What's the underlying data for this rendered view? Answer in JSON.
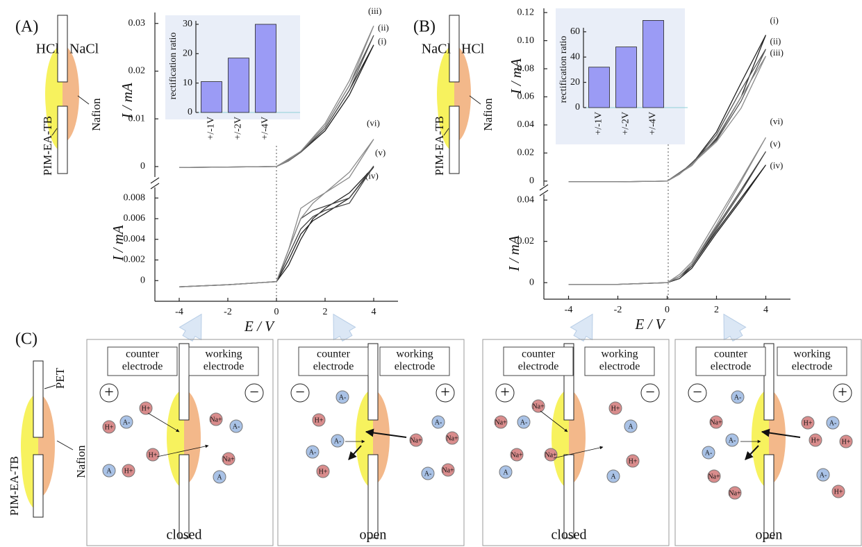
{
  "chart_data": [
    {
      "type": "line",
      "x": [
        -4,
        -2,
        0,
        0.5,
        1,
        2,
        3,
        4,
        3,
        2,
        1,
        0,
        -2,
        -4
      ],
      "series": [
        {
          "name": "(i)",
          "color": "#222222",
          "values": [
            -0.0002,
            -0.0001,
            0,
            0.0012,
            0.003,
            0.008,
            0.016,
            0.0255,
            0.015,
            0.0075,
            0.003,
            0,
            -0.0001,
            -0.0002
          ]
        },
        {
          "name": "(ii)",
          "color": "#555555",
          "values": [
            -0.0002,
            -0.0001,
            0,
            0.0012,
            0.0031,
            0.0085,
            0.017,
            0.0275,
            0.016,
            0.008,
            0.003,
            0,
            -0.0001,
            -0.0002
          ]
        },
        {
          "name": "(iii)",
          "color": "#8a8a8a",
          "values": [
            -0.0002,
            -0.0001,
            0,
            0.0013,
            0.0032,
            0.009,
            0.018,
            0.0295,
            0.017,
            0.0085,
            0.0032,
            0,
            -0.0001,
            -0.0002
          ]
        }
      ],
      "xlim": [
        -5,
        5
      ],
      "ylim": [
        -0.0035,
        0.032
      ],
      "yticks": [
        0,
        0.01,
        0.02,
        0.03
      ],
      "ylabel": "I / mA"
    },
    {
      "type": "line",
      "x": [
        -4,
        -2,
        0,
        0.5,
        1,
        1.5,
        2,
        3,
        4,
        3,
        2,
        1.5,
        1,
        0.5,
        0,
        -2,
        -4
      ],
      "series": [
        {
          "name": "(iv)",
          "color": "#222222",
          "values": [
            -0.0006,
            -0.0004,
            -0.0001,
            0.002,
            0.0045,
            0.0058,
            0.0065,
            0.008,
            0.011,
            0.0085,
            0.007,
            0.006,
            0.004,
            0.0015,
            -0.0001,
            -0.0004,
            -0.0006
          ]
        },
        {
          "name": "(v)",
          "color": "#444444",
          "values": [
            -0.0006,
            -0.0004,
            -0.0001,
            0.0025,
            0.005,
            0.0062,
            0.0068,
            0.0075,
            0.0111,
            0.008,
            0.0072,
            0.0068,
            0.006,
            0.003,
            -0.0001,
            -0.0004,
            -0.0006
          ]
        },
        {
          "name": "(vi)",
          "color": "#8a8a8a",
          "values": [
            -0.0006,
            -0.0004,
            -0.0001,
            0.003,
            0.006,
            0.0075,
            0.0085,
            0.0105,
            0.0137,
            0.01,
            0.0085,
            0.0078,
            0.007,
            0.003,
            -0.0001,
            -0.0004,
            -0.0006
          ]
        }
      ],
      "xlim": [
        -5,
        5
      ],
      "ylim": [
        -0.002,
        0.014
      ],
      "xticks": [
        -4,
        -2,
        0,
        2,
        4
      ],
      "yticks": [
        0,
        0.002,
        0.004,
        0.006,
        0.008
      ],
      "ylabel": "I / mA",
      "xlabel": "E / V"
    },
    {
      "type": "bar",
      "categories": [
        "+/-1V",
        "+/-2V",
        "+/-4V"
      ],
      "values": [
        10.5,
        18.5,
        30
      ],
      "color": "#9b9bf5",
      "ylim": [
        0,
        30
      ],
      "yticks": [
        0,
        10,
        20,
        30
      ],
      "ylabel": "rectification ratio"
    },
    {
      "type": "line",
      "x": [
        -4,
        -2,
        0,
        0.5,
        1,
        2,
        3,
        4,
        3,
        2,
        1,
        0,
        -2,
        -4
      ],
      "series": [
        {
          "name": "(i)",
          "color": "#222222",
          "values": [
            -0.0005,
            -0.0005,
            0,
            0.005,
            0.013,
            0.03,
            0.06,
            0.104,
            0.07,
            0.035,
            0.012,
            0,
            -0.0005,
            -0.0005
          ]
        },
        {
          "name": "(ii)",
          "color": "#555555",
          "values": [
            -0.0005,
            -0.0005,
            0,
            0.005,
            0.013,
            0.029,
            0.057,
            0.094,
            0.065,
            0.033,
            0.012,
            0,
            -0.0005,
            -0.0005
          ]
        },
        {
          "name": "(iii)",
          "color": "#8a8a8a",
          "values": [
            -0.0005,
            -0.0005,
            0,
            0.005,
            0.012,
            0.028,
            0.052,
            0.089,
            0.06,
            0.031,
            0.011,
            0,
            -0.0005,
            -0.0005
          ]
        }
      ],
      "xlim": [
        -5,
        5
      ],
      "ylim": [
        -0.005,
        0.125
      ],
      "yticks": [
        0,
        0.02,
        0.04,
        0.06,
        0.08,
        {
          "value": 0.1,
          "label": "0.10"
        },
        0.12
      ],
      "ylabel": "I / mA"
    },
    {
      "type": "line",
      "x": [
        -4,
        -2,
        0,
        0.5,
        1,
        2,
        3,
        4,
        3,
        2,
        1,
        0.5,
        0,
        -2,
        -4
      ],
      "series": [
        {
          "name": "(iv)",
          "color": "#222222",
          "values": [
            -0.0008,
            -0.0008,
            0,
            0.003,
            0.008,
            0.025,
            0.041,
            0.057,
            0.04,
            0.024,
            0.007,
            0.002,
            0,
            -0.0008,
            -0.0008
          ]
        },
        {
          "name": "(v)",
          "color": "#444444",
          "values": [
            -0.0008,
            -0.0008,
            0,
            0.003,
            0.009,
            0.027,
            0.045,
            0.0635,
            0.044,
            0.026,
            0.008,
            0.002,
            0,
            -0.0008,
            -0.0008
          ]
        },
        {
          "name": "(vi)",
          "color": "#8a8a8a",
          "values": [
            -0.0008,
            -0.0008,
            0,
            0.004,
            0.01,
            0.03,
            0.05,
            0.0703,
            0.049,
            0.028,
            0.009,
            0.003,
            0,
            -0.0008,
            -0.0008
          ]
        }
      ],
      "xlim": [
        -5,
        5
      ],
      "ylim": [
        -0.008,
        0.072
      ],
      "xticks": [
        -4,
        -2,
        0,
        2,
        4
      ],
      "yticks": [
        0,
        0.02,
        0.04
      ],
      "ylabel": "I / mA",
      "xlabel": "E / V"
    },
    {
      "type": "bar",
      "categories": [
        "+/-1V",
        "+/-2V",
        "+/-4V"
      ],
      "values": [
        32,
        48,
        69
      ],
      "color": "#9b9bf5",
      "ylim": [
        0,
        70
      ],
      "yticks": [
        0,
        20,
        40,
        60
      ],
      "ylabel": "rectification ratio"
    }
  ],
  "figure": {
    "panel_labels": [
      "(A)",
      "(B)",
      "(C)"
    ],
    "panel_a": {
      "left": "HCl",
      "right": "NaCl",
      "pim": "PIM-EA-TB",
      "nafion": "Nafion"
    },
    "panel_b": {
      "left": "NaCl",
      "right": "HCl",
      "pim": "PIM-EA-TB",
      "nafion": "Nafion"
    },
    "panel_c": {
      "pet": "PET",
      "pim": "PIM-EA-TB",
      "nafion": "Nafion"
    },
    "boxes": [
      {
        "counter": [
          "counter",
          "electrode"
        ],
        "working": [
          "working",
          "electrode"
        ],
        "left_sign": "+",
        "right_sign": "−",
        "state": "closed",
        "ions": [
          {
            "label": "H+",
            "color": "#d98c8c"
          },
          {
            "label": "A-",
            "color": "#a9c2e6"
          },
          {
            "label": "H+",
            "color": "#d98c8c"
          },
          {
            "label": "A",
            "color": "#a9c2e6"
          },
          {
            "label": "H+",
            "color": "#d98c8c"
          },
          {
            "label": "H+",
            "color": "#d98c8c"
          },
          {
            "label": "Na+",
            "color": "#d98c8c"
          },
          {
            "label": "A-",
            "color": "#a9c2e6"
          },
          {
            "label": "Na+",
            "color": "#d98c8c"
          },
          {
            "label": "A",
            "color": "#a9c2e6"
          }
        ]
      },
      {
        "counter": [
          "counter",
          "electrode"
        ],
        "working": [
          "working",
          "electrode"
        ],
        "left_sign": "−",
        "right_sign": "+",
        "state": "open",
        "ions": [
          {
            "label": "A-",
            "color": "#a9c2e6"
          },
          {
            "label": "H+",
            "color": "#d98c8c"
          },
          {
            "label": "A-",
            "color": "#a9c2e6"
          },
          {
            "label": "A-",
            "color": "#a9c2e6"
          },
          {
            "label": "H+",
            "color": "#d98c8c"
          },
          {
            "label": "Na+",
            "color": "#d98c8c"
          },
          {
            "label": "A-",
            "color": "#a9c2e6"
          },
          {
            "label": "Na+",
            "color": "#d98c8c"
          },
          {
            "label": "Na+",
            "color": "#d98c8c"
          },
          {
            "label": "A-",
            "color": "#a9c2e6"
          }
        ]
      },
      {
        "counter": [
          "counter",
          "electrode"
        ],
        "working": [
          "working",
          "electrode"
        ],
        "left_sign": "+",
        "right_sign": "−",
        "state": "closed",
        "ions": [
          {
            "label": "Na+",
            "color": "#d98c8c"
          },
          {
            "label": "Na+",
            "color": "#d98c8c"
          },
          {
            "label": "A-",
            "color": "#a9c2e6"
          },
          {
            "label": "Na+",
            "color": "#d98c8c"
          },
          {
            "label": "Na+",
            "color": "#d98c8c"
          },
          {
            "label": "A",
            "color": "#a9c2e6"
          },
          {
            "label": "H+",
            "color": "#d98c8c"
          },
          {
            "label": "A",
            "color": "#a9c2e6"
          },
          {
            "label": "H+",
            "color": "#d98c8c"
          },
          {
            "label": "A",
            "color": "#a9c2e6"
          }
        ]
      },
      {
        "counter": [
          "counter",
          "electrode"
        ],
        "working": [
          "working",
          "electrode"
        ],
        "left_sign": "−",
        "right_sign": "+",
        "state": "open",
        "ions": [
          {
            "label": "A-",
            "color": "#a9c2e6"
          },
          {
            "label": "Na+",
            "color": "#d98c8c"
          },
          {
            "label": "A-",
            "color": "#a9c2e6"
          },
          {
            "label": "A-",
            "color": "#a9c2e6"
          },
          {
            "label": "Na+",
            "color": "#d98c8c"
          },
          {
            "label": "Na+",
            "color": "#d98c8c"
          },
          {
            "label": "H+",
            "color": "#d98c8c"
          },
          {
            "label": "A-",
            "color": "#a9c2e6"
          },
          {
            "label": "H+",
            "color": "#d98c8c"
          },
          {
            "label": "H+",
            "color": "#d98c8c"
          },
          {
            "label": "A-",
            "color": "#a9c2e6"
          },
          {
            "label": "H+",
            "color": "#d98c8c"
          }
        ]
      }
    ]
  }
}
